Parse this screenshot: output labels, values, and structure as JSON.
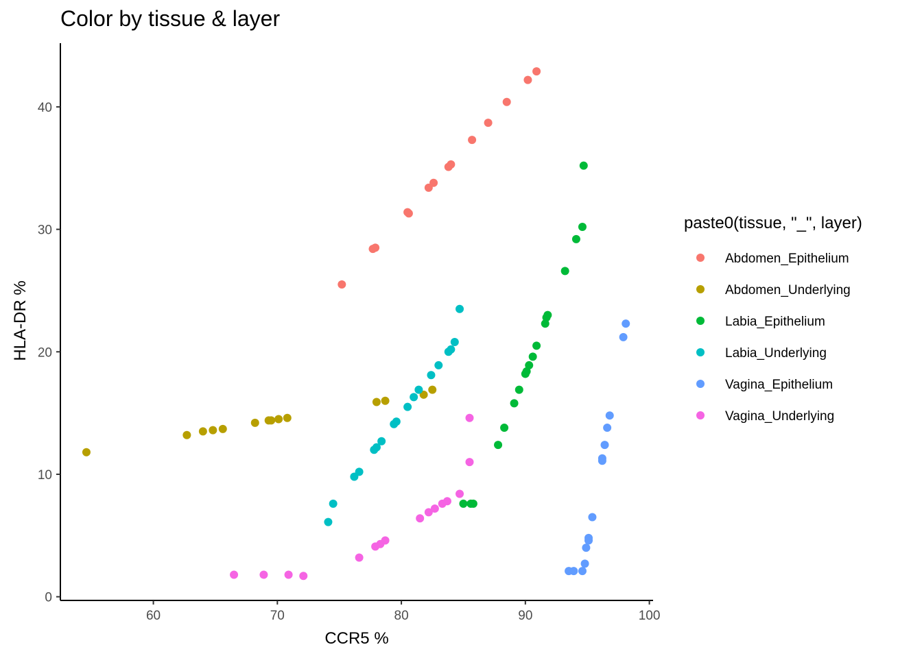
{
  "chart_data": {
    "type": "scatter",
    "title": "Color by tissue & layer",
    "xlabel": "CCR5 %",
    "ylabel": "HLA-DR %",
    "xlim": [
      52.5,
      100.3
    ],
    "ylim": [
      -0.3,
      45.2
    ],
    "xticks": [
      60,
      70,
      80,
      90,
      100
    ],
    "yticks": [
      0,
      10,
      20,
      30,
      40
    ],
    "grid": false,
    "legend": {
      "title": "paste0(tissue, \"_\", layer)",
      "placement": "right"
    },
    "series": [
      {
        "name": "Abdomen_Epithelium",
        "color": "#F8766D",
        "points": [
          [
            75.2,
            25.5
          ],
          [
            77.7,
            28.4
          ],
          [
            77.9,
            28.5
          ],
          [
            80.5,
            31.4
          ],
          [
            80.6,
            31.3
          ],
          [
            82.2,
            33.4
          ],
          [
            82.6,
            33.8
          ],
          [
            83.8,
            35.1
          ],
          [
            84.0,
            35.3
          ],
          [
            85.7,
            37.3
          ],
          [
            87.0,
            38.7
          ],
          [
            88.5,
            40.4
          ],
          [
            90.2,
            42.2
          ],
          [
            90.9,
            42.9
          ]
        ]
      },
      {
        "name": "Abdomen_Underlying",
        "color": "#B79F00",
        "points": [
          [
            54.6,
            11.8
          ],
          [
            62.7,
            13.2
          ],
          [
            64.0,
            13.5
          ],
          [
            64.8,
            13.6
          ],
          [
            65.6,
            13.7
          ],
          [
            68.2,
            14.2
          ],
          [
            69.3,
            14.4
          ],
          [
            69.5,
            14.4
          ],
          [
            70.1,
            14.5
          ],
          [
            70.8,
            14.6
          ],
          [
            78.0,
            15.9
          ],
          [
            78.7,
            16.0
          ],
          [
            81.8,
            16.5
          ],
          [
            82.5,
            16.9
          ]
        ]
      },
      {
        "name": "Labia_Epithelium",
        "color": "#00BA38",
        "points": [
          [
            94.7,
            35.2
          ],
          [
            94.6,
            30.2
          ],
          [
            94.1,
            29.2
          ],
          [
            93.2,
            26.6
          ],
          [
            91.8,
            23.0
          ],
          [
            91.7,
            22.8
          ],
          [
            91.6,
            22.3
          ],
          [
            90.9,
            20.5
          ],
          [
            90.6,
            19.6
          ],
          [
            90.3,
            18.9
          ],
          [
            90.1,
            18.4
          ],
          [
            90.0,
            18.2
          ],
          [
            89.5,
            16.9
          ],
          [
            89.1,
            15.8
          ],
          [
            88.3,
            13.8
          ],
          [
            87.8,
            12.4
          ],
          [
            85.0,
            7.6
          ],
          [
            85.6,
            7.6
          ],
          [
            85.8,
            7.6
          ]
        ]
      },
      {
        "name": "Labia_Underlying",
        "color": "#00BFC4",
        "points": [
          [
            84.7,
            23.5
          ],
          [
            84.3,
            20.8
          ],
          [
            84.0,
            20.2
          ],
          [
            83.8,
            20.0
          ],
          [
            83.0,
            18.9
          ],
          [
            82.4,
            18.1
          ],
          [
            81.4,
            16.9
          ],
          [
            81.0,
            16.3
          ],
          [
            80.5,
            15.5
          ],
          [
            79.6,
            14.3
          ],
          [
            79.4,
            14.1
          ],
          [
            78.4,
            12.7
          ],
          [
            78.0,
            12.2
          ],
          [
            77.8,
            12.0
          ],
          [
            76.6,
            10.2
          ],
          [
            76.2,
            9.8
          ],
          [
            74.5,
            7.6
          ],
          [
            74.1,
            6.1
          ]
        ]
      },
      {
        "name": "Vagina_Epithelium",
        "color": "#619CFF",
        "points": [
          [
            98.1,
            22.3
          ],
          [
            97.9,
            21.2
          ],
          [
            96.8,
            14.8
          ],
          [
            96.6,
            13.8
          ],
          [
            96.4,
            12.4
          ],
          [
            96.2,
            11.3
          ],
          [
            96.2,
            11.1
          ],
          [
            95.4,
            6.5
          ],
          [
            95.1,
            4.8
          ],
          [
            95.1,
            4.6
          ],
          [
            94.9,
            4.0
          ],
          [
            94.8,
            2.7
          ],
          [
            93.5,
            2.1
          ],
          [
            93.9,
            2.1
          ],
          [
            94.6,
            2.1
          ]
        ]
      },
      {
        "name": "Vagina_Underlying",
        "color": "#F564E3",
        "points": [
          [
            85.5,
            14.6
          ],
          [
            85.5,
            11.0
          ],
          [
            84.7,
            8.4
          ],
          [
            83.7,
            7.8
          ],
          [
            83.3,
            7.6
          ],
          [
            82.7,
            7.2
          ],
          [
            82.2,
            6.9
          ],
          [
            81.5,
            6.4
          ],
          [
            78.7,
            4.6
          ],
          [
            78.3,
            4.3
          ],
          [
            77.9,
            4.1
          ],
          [
            76.6,
            3.2
          ],
          [
            66.5,
            1.8
          ],
          [
            68.9,
            1.8
          ],
          [
            70.9,
            1.8
          ],
          [
            72.1,
            1.7
          ]
        ]
      }
    ]
  }
}
